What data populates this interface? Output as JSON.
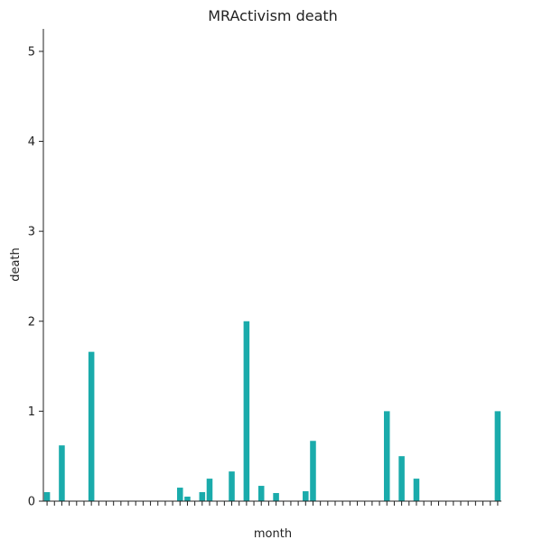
{
  "chart_data": {
    "type": "bar",
    "title": "MRActivism death",
    "xlabel": "month",
    "ylabel": "death",
    "ylim": [
      0,
      5.25
    ],
    "yticks": [
      0,
      1,
      2,
      3,
      4,
      5
    ],
    "x_tick_labels_legible": false,
    "grid": false,
    "legend": "none",
    "bar_color": "#1aabab",
    "series": [
      {
        "values": [
          0.1,
          0,
          0.62,
          0,
          0,
          0,
          1.66,
          0,
          0,
          0,
          0,
          0,
          0,
          0,
          0,
          0,
          0,
          0,
          0.15,
          0.05,
          0,
          0.1,
          0.25,
          0,
          0,
          0.33,
          0,
          2.0,
          0,
          0.17,
          0,
          0.09,
          0,
          0,
          0,
          0.11,
          0.67,
          0,
          0,
          0,
          0,
          0,
          0,
          0,
          0,
          0,
          1.0,
          0,
          0.5,
          0,
          0.25,
          0,
          0,
          0,
          0,
          0,
          0,
          0,
          0,
          0,
          0,
          1.0
        ]
      }
    ]
  }
}
